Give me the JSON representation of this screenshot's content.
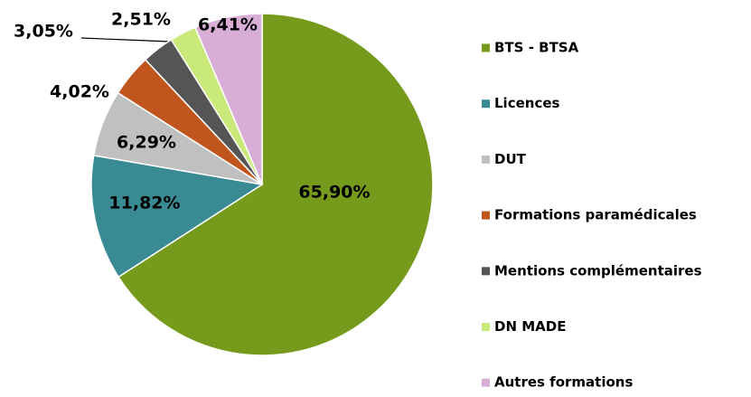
{
  "chart_data": {
    "type": "pie",
    "categories": [
      "BTS - BTSA",
      "Licences",
      "DUT",
      "Formations paramédicales",
      "Mentions complémentaires",
      "DN MADE",
      "Autres formations"
    ],
    "values": [
      65.9,
      11.82,
      6.29,
      4.02,
      3.05,
      2.51,
      6.41
    ],
    "value_labels": [
      "65,90%",
      "11,82%",
      "6,29%",
      "4,02%",
      "3,05%",
      "2,51%",
      "6,41%"
    ],
    "colors": [
      "#759a1c",
      "#3a8a93",
      "#c0c0c0",
      "#c0561e",
      "#555555",
      "#c9e97a",
      "#d9aed6"
    ],
    "legend": "right"
  }
}
